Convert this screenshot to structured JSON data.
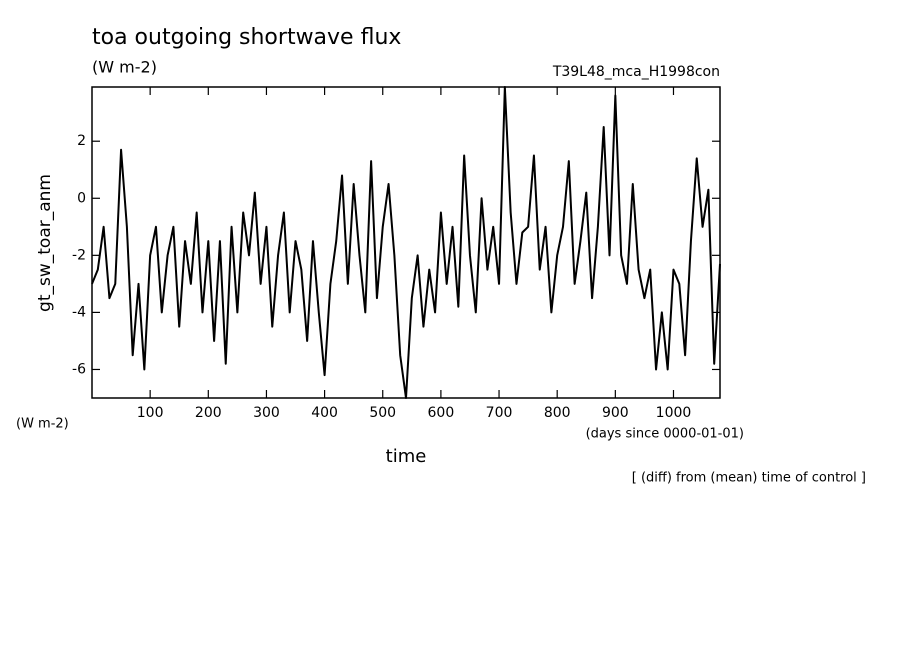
{
  "chart_data": {
    "type": "line",
    "title": "toa outgoing shortwave flux",
    "units": "(W m-2)",
    "run_label": "T39L48_mca_H1998con",
    "y_label": "gt_sw_toar_anm",
    "y_units": "(W m-2)",
    "x_label": "time",
    "x_units": "(days since 0000-01-01)",
    "note": "[ (diff) from (mean) time of control ]",
    "xlim": [
      0,
      1080
    ],
    "ylim": [
      -7,
      3.9
    ],
    "xticks": [
      100,
      200,
      300,
      400,
      500,
      600,
      700,
      800,
      900,
      1000
    ],
    "yticks": [
      -6,
      -4,
      -2,
      0,
      2
    ],
    "color": "#000000",
    "x": [
      0,
      10,
      20,
      30,
      40,
      50,
      60,
      70,
      80,
      90,
      100,
      110,
      120,
      130,
      140,
      150,
      160,
      170,
      180,
      190,
      200,
      210,
      220,
      230,
      240,
      250,
      260,
      270,
      280,
      290,
      300,
      310,
      320,
      330,
      340,
      350,
      360,
      370,
      380,
      390,
      400,
      410,
      420,
      430,
      440,
      450,
      460,
      470,
      480,
      490,
      500,
      510,
      520,
      530,
      540,
      550,
      560,
      570,
      580,
      590,
      600,
      610,
      620,
      630,
      640,
      650,
      660,
      670,
      680,
      690,
      700,
      710,
      720,
      730,
      740,
      750,
      760,
      770,
      780,
      790,
      800,
      810,
      820,
      830,
      840,
      850,
      860,
      870,
      880,
      890,
      900,
      910,
      920,
      930,
      940,
      950,
      960,
      970,
      980,
      990,
      1000,
      1010,
      1020,
      1030,
      1040,
      1050,
      1060,
      1070,
      1080
    ],
    "values": [
      -3,
      -2.5,
      -1,
      -3.5,
      -3,
      1.7,
      -1,
      -5.5,
      -3,
      -6,
      -2,
      -1,
      -4,
      -2,
      -1,
      -4.5,
      -1.5,
      -3,
      -0.5,
      -4,
      -1.5,
      -5,
      -1.5,
      -5.8,
      -1,
      -4,
      -0.5,
      -2,
      0.2,
      -3,
      -1,
      -4.5,
      -2,
      -0.5,
      -4,
      -1.5,
      -2.5,
      -5,
      -1.5,
      -4,
      -6.2,
      -3,
      -1.5,
      0.8,
      -3,
      0.5,
      -2,
      -4,
      1.3,
      -3.5,
      -1,
      0.5,
      -2,
      -5.5,
      -7,
      -3.5,
      -2,
      -4.5,
      -2.5,
      -4,
      -0.5,
      -3,
      -1,
      -3.8,
      1.5,
      -2,
      -4,
      0,
      -2.5,
      -1,
      -3,
      3.9,
      -0.5,
      -3,
      -1.2,
      -1,
      1.5,
      -2.5,
      -1,
      -4,
      -2,
      -1,
      1.3,
      -3,
      -1.5,
      0.2,
      -3.5,
      -1,
      2.5,
      -2,
      3.6,
      -2,
      -3,
      0.5,
      -2.5,
      -3.5,
      -2.5,
      -6,
      -4,
      -6,
      -2.5,
      -3,
      -5.5,
      -1.5,
      1.4,
      -1,
      0.3,
      -5.8,
      -2.3
    ]
  }
}
